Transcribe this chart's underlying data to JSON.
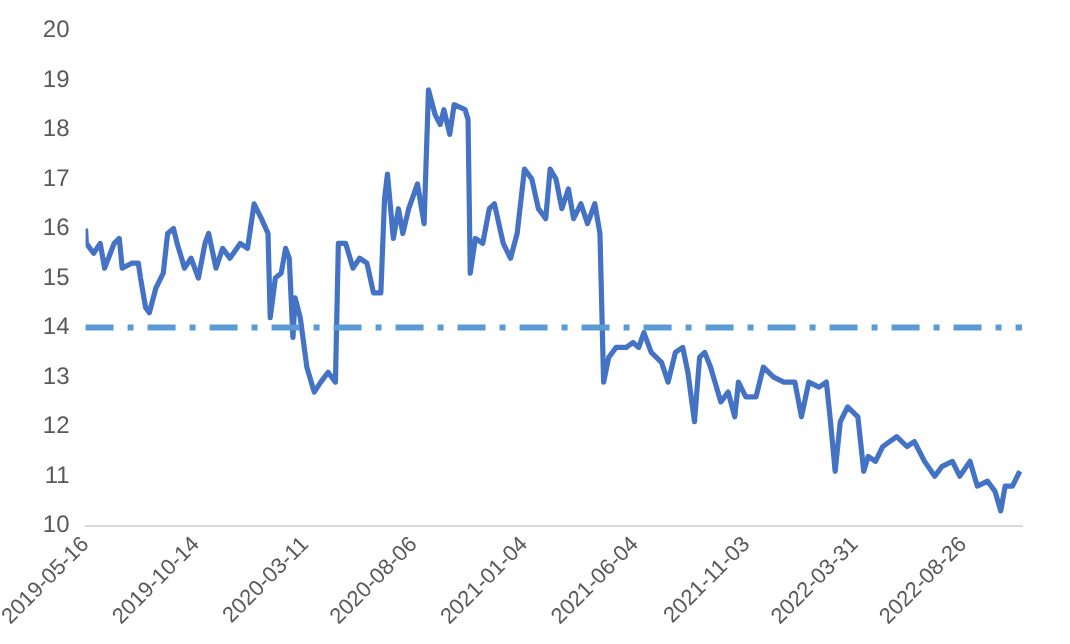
{
  "chart_data": {
    "type": "line",
    "x": [
      "2019-05-16",
      "2019-05-17",
      "2019-05-27",
      "2019-06-05",
      "2019-06-11",
      "2019-06-24",
      "2019-07-01",
      "2019-07-05",
      "2019-07-18",
      "2019-07-27",
      "2019-07-30",
      "2019-08-06",
      "2019-08-11",
      "2019-08-20",
      "2019-08-30",
      "2019-09-05",
      "2019-09-13",
      "2019-09-18",
      "2019-09-28",
      "2019-10-07",
      "2019-10-17",
      "2019-10-26",
      "2019-10-31",
      "2019-11-10",
      "2019-11-19",
      "2019-11-29",
      "2019-12-13",
      "2019-12-23",
      "2020-01-01",
      "2020-01-11",
      "2020-01-20",
      "2020-01-23",
      "2020-01-30",
      "2020-02-07",
      "2020-02-13",
      "2020-02-18",
      "2020-02-23",
      "2020-02-26",
      "2020-03-04",
      "2020-03-13",
      "2020-03-23",
      "2020-04-01",
      "2020-04-11",
      "2020-04-21",
      "2020-04-25",
      "2020-05-05",
      "2020-05-15",
      "2020-05-24",
      "2020-06-03",
      "2020-06-12",
      "2020-06-22",
      "2020-06-27",
      "2020-07-01",
      "2020-07-09",
      "2020-07-16",
      "2020-07-22",
      "2020-07-30",
      "2020-08-11",
      "2020-08-20",
      "2020-08-26",
      "2020-09-04",
      "2020-09-11",
      "2020-09-16",
      "2020-09-24",
      "2020-09-30",
      "2020-10-15",
      "2020-10-19",
      "2020-10-22",
      "2020-10-29",
      "2020-11-08",
      "2020-11-17",
      "2020-11-24",
      "2020-12-06",
      "2020-12-16",
      "2020-12-25",
      "2021-01-04",
      "2021-01-14",
      "2021-01-23",
      "2021-02-02",
      "2021-02-08",
      "2021-02-16",
      "2021-02-24",
      "2021-03-05",
      "2021-03-12",
      "2021-03-22",
      "2021-03-31",
      "2021-04-10",
      "2021-04-17",
      "2021-04-22",
      "2021-04-29",
      "2021-05-09",
      "2021-05-23",
      "2021-06-01",
      "2021-06-09",
      "2021-06-16",
      "2021-06-26",
      "2021-07-10",
      "2021-07-19",
      "2021-07-29",
      "2021-08-08",
      "2021-08-15",
      "2021-08-24",
      "2021-08-31",
      "2021-09-07",
      "2021-09-15",
      "2021-09-29",
      "2021-10-09",
      "2021-10-18",
      "2021-10-23",
      "2021-11-02",
      "2021-11-16",
      "2021-11-26",
      "2021-12-10",
      "2021-12-24",
      "2022-01-08",
      "2022-01-17",
      "2022-01-27",
      "2022-02-10",
      "2022-02-20",
      "2022-02-25",
      "2022-03-04",
      "2022-03-11",
      "2022-03-21",
      "2022-04-04",
      "2022-04-12",
      "2022-04-18",
      "2022-04-28",
      "2022-05-08",
      "2022-05-27",
      "2022-06-10",
      "2022-06-20",
      "2022-07-04",
      "2022-07-18",
      "2022-07-28",
      "2022-08-11",
      "2022-08-21",
      "2022-09-04",
      "2022-09-14",
      "2022-09-28",
      "2022-10-08",
      "2022-10-16",
      "2022-10-22",
      "2022-11-01",
      "2022-11-11"
    ],
    "series": [
      {
        "color": "#4472c4",
        "values": [
          16.0,
          15.7,
          15.5,
          15.7,
          15.2,
          15.7,
          15.8,
          15.2,
          15.3,
          15.3,
          15.0,
          14.4,
          14.3,
          14.8,
          15.1,
          15.9,
          16.0,
          15.7,
          15.2,
          15.4,
          15.0,
          15.7,
          15.9,
          15.2,
          15.6,
          15.4,
          15.7,
          15.6,
          16.5,
          16.2,
          15.9,
          14.2,
          15.0,
          15.1,
          15.6,
          15.4,
          13.8,
          14.6,
          14.2,
          13.2,
          12.7,
          12.9,
          13.1,
          12.9,
          15.7,
          15.7,
          15.2,
          15.4,
          15.3,
          14.7,
          14.7,
          16.6,
          17.1,
          15.8,
          16.4,
          15.9,
          16.4,
          16.9,
          16.1,
          18.8,
          18.3,
          18.1,
          18.4,
          17.9,
          18.5,
          18.4,
          18.2,
          15.1,
          15.8,
          15.7,
          16.4,
          16.5,
          15.7,
          15.4,
          15.9,
          17.2,
          17.0,
          16.4,
          16.2,
          17.2,
          17.0,
          16.4,
          16.8,
          16.2,
          16.5,
          16.1,
          16.5,
          15.9,
          12.9,
          13.4,
          13.6,
          13.6,
          13.7,
          13.6,
          13.9,
          13.5,
          13.3,
          12.9,
          13.5,
          13.6,
          13.1,
          12.1,
          13.4,
          13.5,
          13.2,
          12.5,
          12.7,
          12.2,
          12.9,
          12.6,
          12.6,
          13.2,
          13.0,
          12.9,
          12.9,
          12.2,
          12.9,
          12.8,
          12.9,
          12.2,
          11.1,
          12.1,
          12.4,
          12.2,
          11.1,
          11.4,
          11.3,
          11.6,
          11.8,
          11.6,
          11.7,
          11.3,
          11.0,
          11.2,
          11.3,
          11.0,
          11.3,
          10.8,
          10.9,
          10.7,
          10.3,
          10.8,
          10.8,
          11.1
        ]
      }
    ],
    "xlim": [
      "2019-05-16",
      "2022-11-14"
    ],
    "xticks": [
      "2019-05-16",
      "2019-10-14",
      "2020-03-11",
      "2020-08-06",
      "2021-01-04",
      "2021-06-04",
      "2021-11-03",
      "2022-03-31",
      "2022-08-26"
    ],
    "ylim": [
      10,
      20
    ],
    "yticks": [
      10,
      11,
      12,
      13,
      14,
      15,
      16,
      17,
      18,
      19,
      20
    ],
    "ref_lines": [
      {
        "axis": "y",
        "value": 14,
        "color": "#5b9bd5",
        "line_style": "dashdot"
      }
    ],
    "grid": false,
    "legend": false,
    "marker": "none",
    "line_style": "solid"
  }
}
